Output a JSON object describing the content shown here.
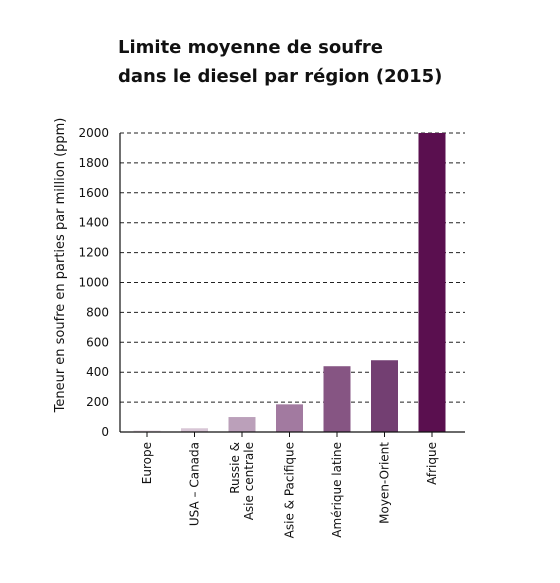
{
  "chart_data": {
    "type": "bar",
    "title_line1": "Limite moyenne de soufre",
    "title_line2": "dans le diesel par région (2015)",
    "ylabel": "Teneur en soufre en parties par million (ppm)",
    "xlabel": "",
    "ylim": [
      0,
      2000
    ],
    "yticks": [
      "0",
      "200",
      "400",
      "600",
      "800",
      "1000",
      "1200",
      "1400",
      "1600",
      "1800",
      "2000"
    ],
    "grid": "horizontal dashed",
    "categories": [
      [
        "Europe"
      ],
      [
        "USA – Canada"
      ],
      [
        "Russie &",
        "Asie centrale"
      ],
      [
        "Asie & Pacifique"
      ],
      [
        "Amérique latine"
      ],
      [
        "Moyen-Orient"
      ],
      [
        "Afrique"
      ]
    ],
    "values": [
      10,
      25,
      100,
      185,
      440,
      480,
      2000
    ],
    "colors": [
      "#e8dbe6",
      "#d8c6d6",
      "#bba0ba",
      "#a27aa0",
      "#865583",
      "#733f72",
      "#5a0f4f"
    ]
  }
}
